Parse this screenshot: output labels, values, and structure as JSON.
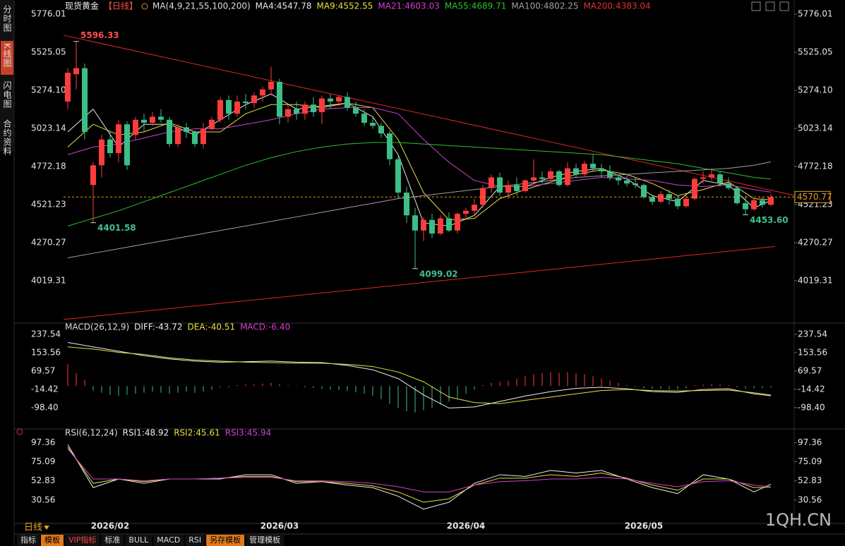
{
  "ui": {
    "sidebar": [
      "分时图",
      "K线图",
      "闪电图",
      "合约资料"
    ],
    "period": "日线",
    "tabs": [
      "指标",
      "模板",
      "VIP指标",
      "标准",
      "BULL",
      "MACD",
      "RSI",
      "另存模板",
      "管理模板"
    ],
    "watermark": "1QH.CN"
  },
  "chart_data": [
    {
      "type": "candlestick",
      "title": "现货黄金",
      "period": "【日线】",
      "ma_title": "MA(4,9,21,55,100,200)",
      "up_color": "#ff3c3c",
      "down_color": "#3cbf86",
      "open": [
        5200,
        5380,
        5420,
        4650,
        4780,
        4950,
        4860,
        5050,
        4980,
        5080,
        5060,
        5100,
        5080,
        4920,
        5030,
        5000,
        4920,
        5020,
        5080,
        5210,
        5120,
        5200,
        5190,
        5240,
        5280,
        5330,
        5100,
        5150,
        5120,
        5180,
        5130,
        5220,
        5200,
        5230,
        5160,
        5120,
        5060,
        5040,
        4990,
        4820,
        4600,
        4450,
        4350,
        4420,
        4330,
        4430,
        4350,
        4460,
        4480,
        4520,
        4630,
        4700,
        4600,
        4650,
        4610,
        4680,
        4700,
        4690,
        4740,
        4650,
        4760,
        4720,
        4790,
        4760,
        4740,
        4700,
        4680,
        4660,
        4650,
        4570,
        4540,
        4590,
        4560,
        4510,
        4560,
        4690,
        4700,
        4720,
        4660,
        4630,
        4530,
        4490,
        4550,
        4520
      ],
      "high": [
        5420,
        5596.33,
        5450,
        4800,
        4980,
        5000,
        5080,
        5070,
        5100,
        5120,
        5130,
        5150,
        5100,
        5050,
        5060,
        5010,
        5060,
        5100,
        5230,
        5240,
        5240,
        5250,
        5260,
        5300,
        5430,
        5350,
        5180,
        5200,
        5200,
        5230,
        5240,
        5250,
        5240,
        5260,
        5200,
        5150,
        5100,
        5060,
        5010,
        4840,
        4640,
        4500,
        4440,
        4460,
        4450,
        4470,
        4470,
        4500,
        4560,
        4650,
        4720,
        4730,
        4680,
        4700,
        4690,
        4820,
        4740,
        4760,
        4750,
        4800,
        4790,
        4810,
        4850,
        4790,
        4780,
        4720,
        4720,
        4700,
        4660,
        4580,
        4610,
        4620,
        4580,
        4580,
        4700,
        4740,
        4760,
        4740,
        4700,
        4640,
        4580,
        4560,
        4570,
        4590
      ],
      "low": [
        5150,
        5280,
        4950,
        4401.58,
        4700,
        4830,
        4800,
        4750,
        4950,
        5000,
        5040,
        5060,
        4900,
        4900,
        4960,
        4900,
        4890,
        5010,
        5060,
        5080,
        5100,
        5150,
        5160,
        5200,
        5240,
        5050,
        5060,
        5080,
        5080,
        5100,
        5050,
        5150,
        5170,
        5140,
        5100,
        5040,
        5020,
        4960,
        4780,
        4560,
        4400,
        4099.02,
        4280,
        4300,
        4320,
        4340,
        4330,
        4420,
        4450,
        4500,
        4600,
        4580,
        4560,
        4580,
        4600,
        4660,
        4660,
        4680,
        4640,
        4640,
        4700,
        4710,
        4740,
        4700,
        4680,
        4650,
        4640,
        4630,
        4560,
        4520,
        4530,
        4520,
        4490,
        4500,
        4550,
        4660,
        4680,
        4640,
        4620,
        4520,
        4453.6,
        4480,
        4500,
        4510
      ],
      "close": [
        5390,
        5420,
        5000,
        4780,
        4950,
        4860,
        5050,
        4780,
        5080,
        5060,
        5100,
        5080,
        4920,
        5030,
        5000,
        4920,
        5020,
        5080,
        5210,
        5120,
        5200,
        5190,
        5240,
        5280,
        5330,
        5100,
        5150,
        5120,
        5180,
        5130,
        5220,
        5200,
        5230,
        5160,
        5120,
        5060,
        5040,
        4990,
        4820,
        4600,
        4450,
        4350,
        4420,
        4330,
        4430,
        4350,
        4460,
        4480,
        4520,
        4630,
        4700,
        4600,
        4650,
        4610,
        4680,
        4700,
        4690,
        4740,
        4650,
        4760,
        4720,
        4790,
        4760,
        4740,
        4700,
        4680,
        4660,
        4650,
        4570,
        4540,
        4590,
        4560,
        4510,
        4560,
        4690,
        4700,
        4720,
        4660,
        4630,
        4530,
        4490,
        4550,
        4520,
        4570.77
      ],
      "ylim": [
        3754,
        5832
      ],
      "yticks": [
        5776.01,
        5525.05,
        {
          "value": 5274.1,
          "label": "5274.10"
        },
        5023.14,
        4772.18,
        4521.23,
        4270.27,
        4019.31
      ],
      "date_ticks": [
        {
          "value": 5,
          "label": "2026/02"
        },
        {
          "value": 25,
          "label": "2026/03"
        },
        {
          "value": 47,
          "label": "2026/04"
        },
        {
          "value": 68,
          "label": "2026/05"
        }
      ],
      "series": [
        {
          "name": "MA4:4547.78",
          "color": "#e8e8e8",
          "x": [
            0,
            3,
            6,
            9,
            12,
            15,
            18,
            21,
            24,
            27,
            30,
            33,
            36,
            39,
            42,
            45,
            48,
            51,
            54,
            57,
            60,
            63,
            66,
            69,
            72,
            75,
            78,
            81,
            83
          ],
          "values": [
            5000,
            5150,
            4900,
            5050,
            5050,
            4980,
            5080,
            5180,
            5250,
            5150,
            5170,
            5190,
            5100,
            4850,
            4400,
            4380,
            4450,
            4640,
            4640,
            4700,
            4740,
            4760,
            4690,
            4580,
            4540,
            4680,
            4650,
            4500,
            4547.78
          ]
        },
        {
          "name": "MA9:4552.55",
          "color": "#e8e040",
          "x": [
            0,
            3,
            6,
            9,
            12,
            15,
            18,
            21,
            24,
            27,
            30,
            33,
            36,
            39,
            42,
            45,
            48,
            51,
            54,
            57,
            60,
            63,
            66,
            69,
            72,
            75,
            78,
            81,
            83
          ],
          "values": [
            4900,
            5050,
            4980,
            5000,
            5060,
            5000,
            5000,
            5120,
            5180,
            5180,
            5160,
            5190,
            5160,
            4950,
            4600,
            4420,
            4430,
            4560,
            4620,
            4670,
            4720,
            4750,
            4720,
            4660,
            4580,
            4620,
            4670,
            4560,
            4552.55
          ]
        },
        {
          "name": "MA21:4603.03",
          "color": "#d040d0",
          "x": [
            0,
            3,
            6,
            9,
            12,
            15,
            18,
            21,
            24,
            27,
            30,
            33,
            36,
            39,
            42,
            45,
            48,
            51,
            54,
            57,
            60,
            63,
            66,
            69,
            72,
            75,
            78,
            81,
            83
          ],
          "values": [
            4850,
            4900,
            4920,
            4960,
            5000,
            5020,
            5020,
            5050,
            5080,
            5120,
            5150,
            5160,
            5160,
            5120,
            4950,
            4800,
            4680,
            4640,
            4640,
            4660,
            4680,
            4700,
            4690,
            4680,
            4650,
            4640,
            4650,
            4620,
            4603.03
          ]
        },
        {
          "name": "MA55:4689.71",
          "color": "#30c030",
          "x": [
            0,
            3,
            6,
            9,
            12,
            15,
            18,
            21,
            24,
            27,
            30,
            33,
            36,
            39,
            42,
            45,
            48,
            51,
            54,
            57,
            60,
            63,
            66,
            69,
            72,
            75,
            78,
            81,
            83
          ],
          "values": [
            4380,
            4430,
            4480,
            4540,
            4600,
            4660,
            4720,
            4780,
            4830,
            4870,
            4900,
            4920,
            4930,
            4930,
            4920,
            4910,
            4900,
            4890,
            4880,
            4870,
            4860,
            4850,
            4830,
            4810,
            4790,
            4760,
            4730,
            4700,
            4689.71
          ]
        },
        {
          "name": "MA100:4802.25",
          "color": "#a0a0a0",
          "x": [
            0,
            3,
            6,
            9,
            12,
            15,
            18,
            21,
            24,
            27,
            30,
            33,
            36,
            39,
            42,
            45,
            48,
            51,
            54,
            57,
            60,
            63,
            66,
            69,
            72,
            75,
            78,
            81,
            83
          ],
          "values": [
            4170,
            4200,
            4230,
            4260,
            4290,
            4320,
            4350,
            4380,
            4410,
            4440,
            4470,
            4500,
            4530,
            4560,
            4580,
            4600,
            4620,
            4640,
            4660,
            4680,
            4700,
            4710,
            4720,
            4730,
            4740,
            4750,
            4760,
            4780,
            4802.25
          ]
        },
        {
          "name": "MA200:4383.04",
          "color": "#e03030"
        }
      ],
      "trendlines": [
        {
          "color": "#e02828",
          "x": [
            -0.5,
            85.75
          ],
          "values": [
            5637,
            4582
          ]
        },
        {
          "color": "#e02828",
          "x": [
            -0.5,
            83.5
          ],
          "values": [
            3764,
            4245
          ]
        }
      ],
      "annotations": [
        5596.33,
        4401.58,
        4099.02,
        {
          "value": 4453.6,
          "label": "4453.60"
        }
      ]
    },
    {
      "type": "macd",
      "title": "MACD(26,12,9)",
      "up_color": "#ff3c3c",
      "down_color": "#3cbf86",
      "ylim": [
        -186,
        276
      ],
      "yticks": [
        237.54,
        153.56,
        69.57,
        -14.42,
        {
          "value": -98.4,
          "label": "-98.40"
        }
      ],
      "histogram": {
        "name": "MACD:-6.40",
        "color": "#d040d0",
        "values": [
          100,
          60,
          30,
          -20,
          -30,
          -40,
          -45,
          -40,
          -35,
          -30,
          -25,
          -30,
          -35,
          -30,
          -25,
          -30,
          -25,
          -15,
          -5,
          -5,
          5,
          8,
          10,
          12,
          15,
          10,
          5,
          2,
          -5,
          -8,
          -12,
          -15,
          -18,
          -22,
          -28,
          -35,
          -45,
          -60,
          -80,
          -100,
          -115,
          -120,
          -110,
          -100,
          -85,
          -70,
          -55,
          -35,
          -15,
          5,
          15,
          20,
          25,
          35,
          45,
          55,
          60,
          65,
          62,
          65,
          60,
          55,
          45,
          35,
          25,
          15,
          5,
          -5,
          -10,
          -12,
          -12,
          -14,
          -15,
          -10,
          5,
          8,
          10,
          8,
          5,
          -5,
          -10,
          -10,
          -9,
          -6.4
        ]
      },
      "series": [
        {
          "name": "DIFF:-43.72",
          "color": "#f0f0f0",
          "x": [
            0,
            3,
            6,
            9,
            12,
            15,
            18,
            21,
            24,
            27,
            30,
            33,
            36,
            39,
            42,
            45,
            48,
            51,
            54,
            57,
            60,
            63,
            66,
            69,
            72,
            75,
            78,
            81,
            83
          ],
          "values": [
            200,
            180,
            160,
            140,
            125,
            115,
            110,
            112,
            115,
            110,
            108,
            95,
            75,
            35,
            -40,
            -100,
            -95,
            -70,
            -45,
            -25,
            -10,
            -5,
            -12,
            -25,
            -28,
            -15,
            -12,
            -35,
            -43.72
          ]
        },
        {
          "name": "DEA:-40.51",
          "color": "#e8e040",
          "x": [
            0,
            3,
            6,
            9,
            12,
            15,
            18,
            21,
            24,
            27,
            30,
            33,
            36,
            39,
            42,
            45,
            48,
            51,
            54,
            57,
            60,
            63,
            66,
            69,
            72,
            75,
            78,
            81,
            83
          ],
          "values": [
            180,
            170,
            155,
            145,
            130,
            120,
            115,
            110,
            108,
            105,
            105,
            100,
            90,
            65,
            20,
            -50,
            -75,
            -80,
            -65,
            -50,
            -35,
            -20,
            -15,
            -20,
            -22,
            -20,
            -18,
            -30,
            -40.51
          ]
        }
      ]
    },
    {
      "type": "rsi",
      "title": "RSI(6,12,24)",
      "ylim": [
        5,
        110
      ],
      "yticks": [
        97.36,
        75.09,
        52.83,
        30.56
      ],
      "series": [
        {
          "name": "RSI1:48.92",
          "color": "#f0f0f0",
          "x": [
            0,
            3,
            6,
            9,
            12,
            15,
            18,
            21,
            24,
            27,
            30,
            33,
            36,
            39,
            42,
            45,
            48,
            51,
            54,
            57,
            60,
            63,
            66,
            69,
            72,
            75,
            78,
            81,
            83
          ],
          "values": [
            95,
            45,
            55,
            50,
            55,
            55,
            55,
            60,
            60,
            50,
            52,
            48,
            45,
            35,
            20,
            28,
            50,
            60,
            58,
            65,
            62,
            65,
            55,
            45,
            38,
            60,
            55,
            40,
            48.92
          ]
        },
        {
          "name": "RSI2:45.61",
          "color": "#e8e040",
          "x": [
            0,
            3,
            6,
            9,
            12,
            15,
            18,
            21,
            24,
            27,
            30,
            33,
            36,
            39,
            42,
            45,
            48,
            51,
            54,
            57,
            60,
            63,
            66,
            69,
            72,
            75,
            78,
            81,
            83
          ],
          "values": [
            92,
            50,
            55,
            52,
            55,
            55,
            56,
            58,
            58,
            52,
            52,
            50,
            47,
            40,
            28,
            32,
            48,
            56,
            56,
            60,
            58,
            62,
            56,
            48,
            42,
            55,
            55,
            45,
            45.61
          ]
        },
        {
          "name": "RSI3:45.94",
          "color": "#d040d0",
          "x": [
            0,
            3,
            6,
            9,
            12,
            15,
            18,
            21,
            24,
            27,
            30,
            33,
            36,
            39,
            42,
            45,
            48,
            51,
            54,
            57,
            60,
            63,
            66,
            69,
            72,
            75,
            78,
            81,
            83
          ],
          "values": [
            90,
            55,
            55,
            53,
            55,
            55,
            56,
            57,
            57,
            53,
            53,
            52,
            50,
            46,
            40,
            40,
            48,
            52,
            53,
            55,
            55,
            57,
            55,
            50,
            46,
            52,
            53,
            48,
            45.94
          ]
        }
      ]
    }
  ]
}
